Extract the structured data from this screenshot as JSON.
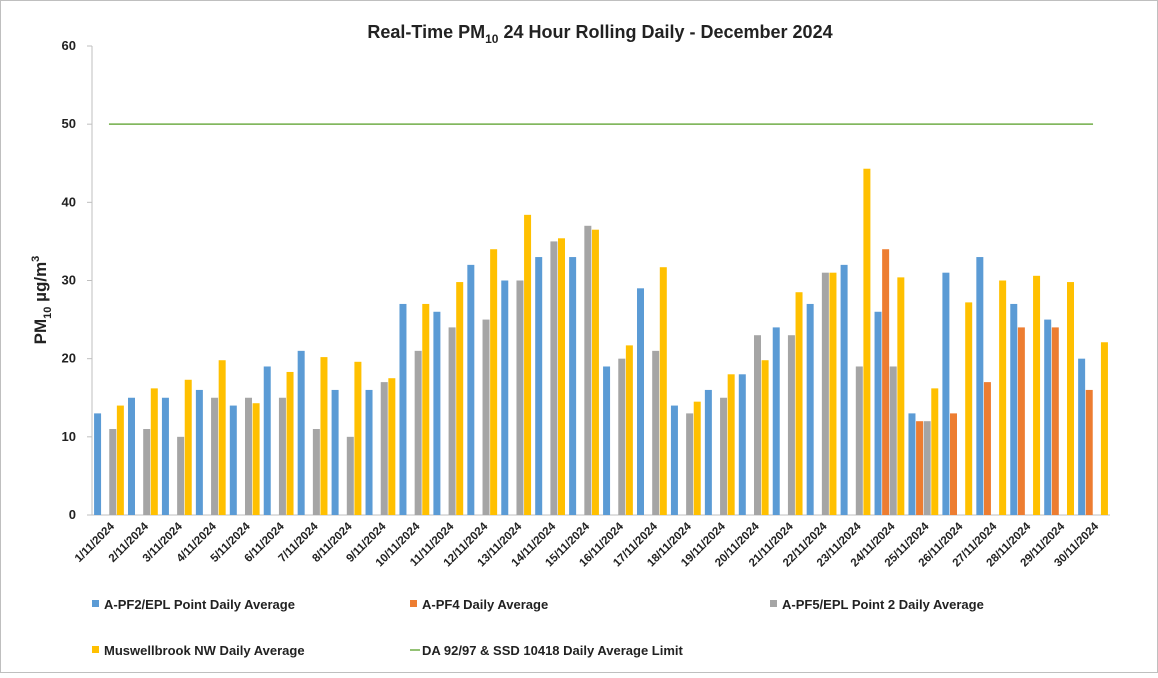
{
  "chart_data": {
    "type": "bar",
    "title": {
      "text": "Real-Time PM",
      "sub": "10",
      "rest": " 24 Hour Rolling Daily - December 2024"
    },
    "y_label": {
      "text": "PM",
      "sub": "10",
      "unit": " µg/m",
      "sup": "3"
    },
    "categories": [
      "1/11/2024",
      "2/11/2024",
      "3/11/2024",
      "4/11/2024",
      "5/11/2024",
      "6/11/2024",
      "7/11/2024",
      "8/11/2024",
      "9/11/2024",
      "10/11/2024",
      "11/11/2024",
      "12/11/2024",
      "13/11/2024",
      "14/11/2024",
      "15/11/2024",
      "16/11/2024",
      "17/11/2024",
      "18/11/2024",
      "19/11/2024",
      "20/11/2024",
      "21/11/2024",
      "22/11/2024",
      "23/11/2024",
      "24/11/2024",
      "25/11/2024",
      "26/11/2024",
      "27/11/2024",
      "28/11/2024",
      "29/11/2024",
      "30/11/2024"
    ],
    "series": [
      {
        "name": "A-PF2/EPL Point Daily Average",
        "color": "#5b9bd5",
        "type": "bar",
        "values": [
          13,
          15,
          15,
          16,
          14,
          19,
          21,
          16,
          16,
          27,
          26,
          32,
          30,
          33,
          33,
          19,
          29,
          14,
          16,
          18,
          24,
          27,
          32,
          26,
          13,
          31,
          33,
          27,
          25,
          20
        ]
      },
      {
        "name": "A-PF4 Daily Average",
        "color": "#ed7d31",
        "type": "bar",
        "values": [
          null,
          null,
          null,
          null,
          null,
          null,
          null,
          null,
          null,
          null,
          null,
          null,
          null,
          null,
          null,
          null,
          null,
          null,
          null,
          null,
          null,
          null,
          null,
          34,
          12,
          13,
          17,
          24,
          24,
          16
        ]
      },
      {
        "name": "A-PF5/EPL Point 2 Daily Average",
        "color": "#a5a5a5",
        "type": "bar",
        "values": [
          11,
          11,
          10,
          15,
          15,
          15,
          11,
          10,
          17,
          21,
          24,
          25,
          30,
          35,
          37,
          20,
          21,
          13,
          15,
          23,
          23,
          31,
          19,
          19,
          12,
          null,
          null,
          null,
          null,
          null
        ]
      },
      {
        "name": "Muswellbrook NW Daily Average",
        "color": "#ffc000",
        "type": "bar",
        "values": [
          14,
          16.2,
          17.3,
          19.8,
          14.3,
          18.3,
          20.2,
          19.6,
          17.5,
          27,
          29.8,
          34,
          38.4,
          35.4,
          36.5,
          21.7,
          31.7,
          14.5,
          18,
          19.8,
          28.5,
          31,
          44.3,
          30.4,
          16.2,
          27.2,
          30,
          30.6,
          29.8,
          22.1
        ]
      },
      {
        "name": "DA 92/97 & SSD 10418 Daily Average Limit",
        "color": "#70ad47",
        "type": "line",
        "values": [
          50,
          50,
          50,
          50,
          50,
          50,
          50,
          50,
          50,
          50,
          50,
          50,
          50,
          50,
          50,
          50,
          50,
          50,
          50,
          50,
          50,
          50,
          50,
          50,
          50,
          50,
          50,
          50,
          50,
          50
        ]
      }
    ],
    "ylim": [
      0,
      60
    ],
    "yticks": [
      0,
      10,
      20,
      30,
      40,
      50,
      60
    ],
    "grid": false
  }
}
